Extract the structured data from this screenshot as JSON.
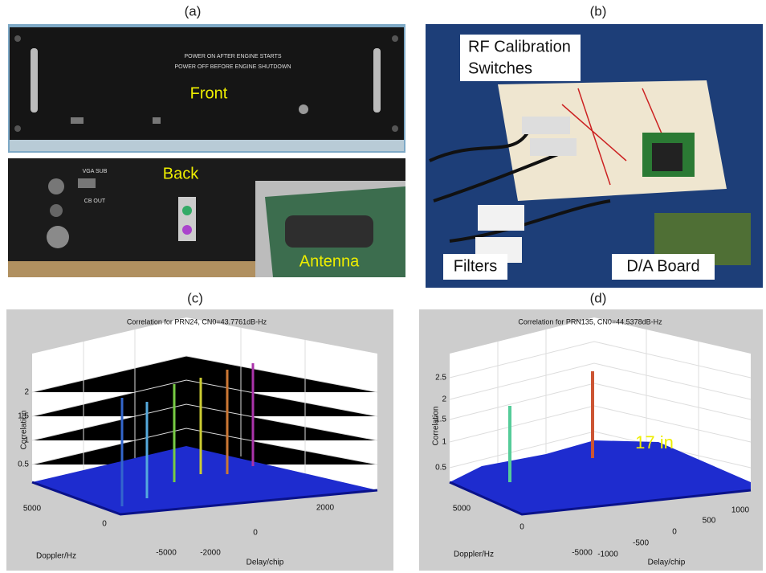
{
  "panels": [
    {
      "label": "(a)",
      "photo_texts": {
        "front_line1": "POWER ON AFTER ENGINE STARTS",
        "front_line2": "POWER OFF BEFORE ENGINE SHUTDOWN",
        "front": "Front",
        "vga": "VGA SUB",
        "cb": "CB OUT",
        "back": "Back",
        "antenna": "Antenna"
      }
    },
    {
      "label": "(b)",
      "photo_texts": {
        "rf": "RF Calibration",
        "switches": "Switches",
        "filters": "Filters",
        "da": "D/A Board"
      }
    },
    {
      "label": "(c)",
      "plot": {
        "title": "Correlation for PRN24, CN0=43.7761dB-Hz",
        "zlabel": "Correlation",
        "zticks": [
          "0.5",
          "1",
          "1.5",
          "2"
        ],
        "xlabel": "Doppler/Hz",
        "xticks": [
          "5000",
          "0",
          "-5000"
        ],
        "ylabel": "Delay/chip",
        "yticks": [
          "-2000",
          "0",
          "2000"
        ]
      }
    },
    {
      "label": "(d)",
      "plot": {
        "title": "Correlation for PRN135, CN0=44.5378dB-Hz",
        "zlabel": "Correlation",
        "zticks": [
          "0.5",
          "1",
          "1.5",
          "2",
          "2.5"
        ],
        "xlabel": "Doppler/Hz",
        "xticks": [
          "5000",
          "0",
          "-5000"
        ],
        "ylabel": "Delay/chip",
        "yticks": [
          "-1000",
          "-500",
          "0",
          "500",
          "1000"
        ],
        "annotation": "17 in"
      }
    }
  ]
}
